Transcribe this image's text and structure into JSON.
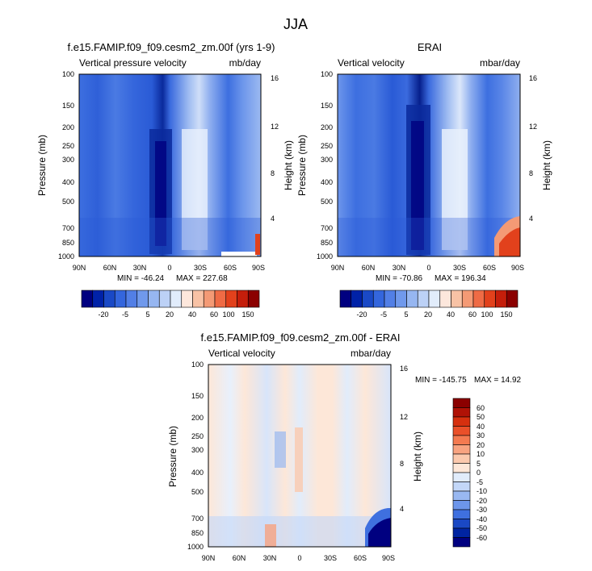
{
  "page": {
    "title": "JJA"
  },
  "chart_data": [
    {
      "type": "heatmap",
      "title": "f.e15.FAMIP.f09_f09.cesm2_zm.00f (yrs 1-9)",
      "left_string": "Vertical pressure velocity",
      "right_string": "mb/day",
      "xlabel": "",
      "ylabel": "Pressure (mb)",
      "ylabel_right": "Height (km)",
      "x_ticks": [
        "90N",
        "60N",
        "30N",
        "0",
        "30S",
        "60S",
        "90S"
      ],
      "y_ticks": [
        "100",
        "150",
        "200",
        "250",
        "300",
        "400",
        "500",
        "700",
        "850",
        "1000"
      ],
      "y_right_ticks": [
        "16",
        "12",
        "8",
        "4"
      ],
      "min_label": "MIN = -46.24",
      "max_label": "MAX = 227.68",
      "colorbar_labels": [
        "-20",
        "-5",
        "5",
        "20",
        "40",
        "60",
        "100",
        "150"
      ]
    },
    {
      "type": "heatmap",
      "title": "ERAI",
      "left_string": "Vertical velocity",
      "right_string": "mbar/day",
      "xlabel": "",
      "ylabel": "Pressure (mb)",
      "ylabel_right": "Height (km)",
      "x_ticks": [
        "90N",
        "60N",
        "30N",
        "0",
        "30S",
        "60S",
        "90S"
      ],
      "y_ticks": [
        "100",
        "150",
        "200",
        "250",
        "300",
        "400",
        "500",
        "700",
        "850",
        "1000"
      ],
      "y_right_ticks": [
        "16",
        "12",
        "8",
        "4"
      ],
      "min_label": "MIN = -70.86",
      "max_label": "MAX = 196.34",
      "colorbar_labels": [
        "-20",
        "-5",
        "5",
        "20",
        "40",
        "60",
        "100",
        "150"
      ]
    },
    {
      "type": "heatmap",
      "title": "f.e15.FAMIP.f09_f09.cesm2_zm.00f - ERAI",
      "left_string": "Vertical velocity",
      "right_string": "mbar/day",
      "xlabel": "",
      "ylabel": "Pressure (mb)",
      "ylabel_right": "Height (km)",
      "x_ticks": [
        "90N",
        "60N",
        "30N",
        "0",
        "30S",
        "60S",
        "90S"
      ],
      "y_ticks": [
        "100",
        "150",
        "200",
        "250",
        "300",
        "400",
        "500",
        "700",
        "850",
        "1000"
      ],
      "y_right_ticks": [
        "16",
        "12",
        "8",
        "4"
      ],
      "min_label": "MIN = -145.75",
      "max_label": "MAX =  14.92",
      "colorbar_labels": [
        "60",
        "50",
        "40",
        "30",
        "20",
        "10",
        "5",
        "0",
        "-5",
        "-10",
        "-20",
        "-30",
        "-40",
        "-50",
        "-60"
      ]
    }
  ],
  "colors": {
    "cbar_top": [
      "#000080",
      "#0022a8",
      "#1a49c6",
      "#3466dd",
      "#527fe6",
      "#7099ec",
      "#96b6f1",
      "#bcd1f6",
      "#e1ecfb",
      "#fde7dc",
      "#f8c2a5",
      "#f49a75",
      "#ef6b45",
      "#e2411c",
      "#c51e0b",
      "#8b0000"
    ],
    "cbar_diff": [
      "#8b0000",
      "#b01206",
      "#d6300f",
      "#ea5029",
      "#f47a50",
      "#f8a380",
      "#fbc9ad",
      "#fde7d8",
      "#e1ecfb",
      "#c3d7f8",
      "#99b8f1",
      "#6d96eb",
      "#3f70df",
      "#1a48c4",
      "#0024a2",
      "#000080"
    ]
  }
}
